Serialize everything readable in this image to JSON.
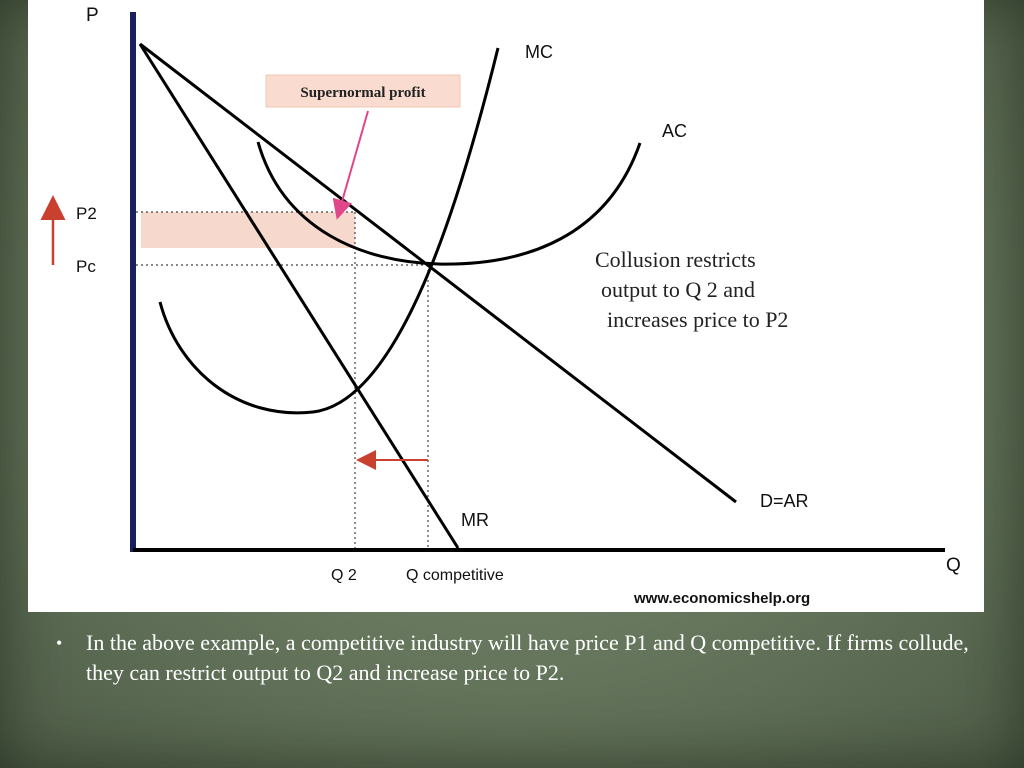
{
  "diagram": {
    "axis_y_label": "P",
    "axis_x_label": "Q",
    "curve_labels": {
      "mc": "MC",
      "ac": "AC",
      "demand": "D=AR",
      "mr": "MR"
    },
    "price_labels": {
      "p2": "P2",
      "pc": "Pc"
    },
    "quantity_labels": {
      "q2": "Q 2",
      "q_competitive": "Q competitive"
    },
    "callout": "Supernormal profit",
    "annotation_lines": [
      "Collusion restricts",
      "output to Q 2 and",
      "increases price to P2"
    ],
    "source": "www.economicshelp.org",
    "colors": {
      "y_axis": "#1a1f5e",
      "profit_area": "#f6d8cc",
      "callout_box": "#f9dccf",
      "callout_arrow": "#e0468a",
      "up_arrow": "#c9402e",
      "left_arrow": "#c9402e"
    }
  },
  "caption": {
    "bullet": "•",
    "text": "In the above example, a competitive industry will have price P1 and Q competitive. If firms collude, they can restrict output to Q2 and increase price to P2."
  }
}
